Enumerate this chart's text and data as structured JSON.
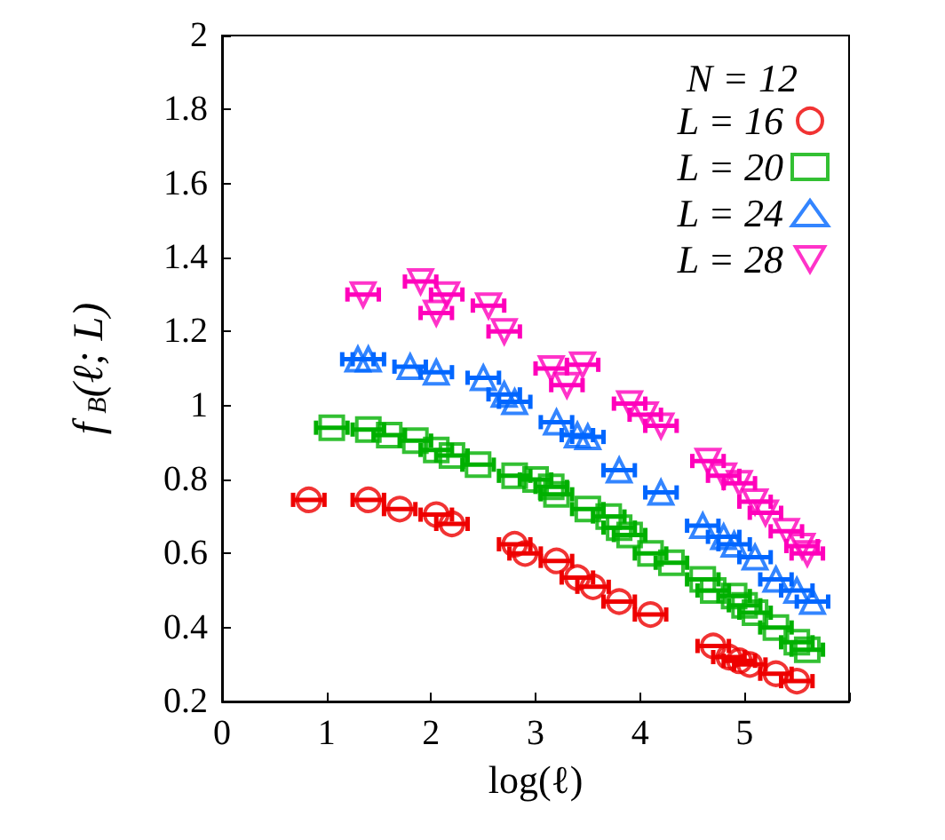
{
  "chart_data": {
    "type": "scatter",
    "xlabel": "log(ℓ)",
    "ylabel": "f$_{B}$(ℓ; L)",
    "legend_title": "N = 12",
    "legend": "top right",
    "grid": false,
    "xlim": [
      0,
      6
    ],
    "xticks": [
      0,
      1,
      2,
      3,
      4,
      5,
      {
        "value": 6,
        "label": null
      }
    ],
    "ylim": [
      0.2,
      2
    ],
    "yticks": [
      0.2,
      0.4,
      0.6,
      0.8,
      1,
      1.2,
      1.4,
      1.6,
      1.8,
      2
    ],
    "series": [
      {
        "name": "L = 16",
        "color": "#ee0000",
        "marker": "circle",
        "x": [
          0.83,
          1.4,
          1.7,
          2.05,
          2.2,
          2.8,
          2.9,
          3.2,
          3.4,
          3.55,
          3.8,
          4.1,
          4.7,
          4.85,
          4.95,
          5.05,
          5.3,
          5.5
        ],
        "values": [
          0.745,
          0.745,
          0.72,
          0.705,
          0.68,
          0.625,
          0.6,
          0.58,
          0.535,
          0.51,
          0.47,
          0.435,
          0.35,
          0.32,
          0.31,
          0.3,
          0.275,
          0.255
        ],
        "xerrors": [
          0.15,
          0.15,
          0.15,
          0.15,
          0.15,
          0.15,
          0.15,
          0.15,
          0.15,
          0.15,
          0.15,
          0.15,
          0.15,
          0.15,
          0.15,
          0.15,
          0.15,
          0.15
        ]
      },
      {
        "name": "L = 20",
        "color": "#00b000",
        "marker": "square",
        "x": [
          1.05,
          1.4,
          1.6,
          1.85,
          2.05,
          2.2,
          2.45,
          2.8,
          3.0,
          3.15,
          3.2,
          3.5,
          3.7,
          3.8,
          3.9,
          4.1,
          4.3,
          4.6,
          4.7,
          4.9,
          5.0,
          5.1,
          5.3,
          5.5,
          5.6
        ],
        "values": [
          0.94,
          0.935,
          0.92,
          0.905,
          0.88,
          0.865,
          0.84,
          0.81,
          0.8,
          0.78,
          0.76,
          0.72,
          0.7,
          0.67,
          0.65,
          0.6,
          0.575,
          0.53,
          0.5,
          0.485,
          0.46,
          0.44,
          0.4,
          0.36,
          0.34
        ],
        "xerrors": [
          0.15,
          0.15,
          0.15,
          0.15,
          0.15,
          0.15,
          0.15,
          0.15,
          0.15,
          0.15,
          0.15,
          0.15,
          0.15,
          0.15,
          0.15,
          0.15,
          0.15,
          0.15,
          0.15,
          0.15,
          0.15,
          0.15,
          0.15,
          0.15,
          0.15
        ]
      },
      {
        "name": "L = 24",
        "color": "#0066ff",
        "marker": "triangle",
        "x": [
          1.3,
          1.4,
          1.8,
          2.05,
          2.5,
          2.7,
          2.8,
          3.2,
          3.4,
          3.5,
          3.8,
          4.2,
          4.6,
          4.8,
          4.9,
          5.1,
          5.3,
          5.5,
          5.65
        ],
        "values": [
          1.125,
          1.125,
          1.105,
          1.09,
          1.075,
          1.03,
          1.01,
          0.955,
          0.92,
          0.915,
          0.825,
          0.765,
          0.675,
          0.645,
          0.625,
          0.59,
          0.53,
          0.5,
          0.47
        ],
        "xerrors": [
          0.15,
          0.15,
          0.15,
          0.15,
          0.15,
          0.15,
          0.15,
          0.15,
          0.15,
          0.15,
          0.15,
          0.15,
          0.15,
          0.15,
          0.15,
          0.15,
          0.15,
          0.15,
          0.15
        ]
      },
      {
        "name": "L = 28",
        "color": "#ff00bb",
        "marker": "triangle-down",
        "x": [
          1.35,
          1.9,
          2.05,
          2.15,
          2.55,
          2.7,
          3.15,
          3.3,
          3.45,
          3.9,
          4.05,
          4.2,
          4.65,
          4.8,
          4.95,
          5.1,
          5.2,
          5.4,
          5.55,
          5.6
        ],
        "values": [
          1.3,
          1.335,
          1.25,
          1.3,
          1.27,
          1.2,
          1.1,
          1.055,
          1.11,
          1.005,
          0.975,
          0.945,
          0.85,
          0.81,
          0.79,
          0.74,
          0.71,
          0.66,
          0.62,
          0.6
        ],
        "xerrors": [
          0.15,
          0.15,
          0.15,
          0.15,
          0.15,
          0.15,
          0.15,
          0.15,
          0.15,
          0.15,
          0.15,
          0.15,
          0.15,
          0.15,
          0.15,
          0.15,
          0.15,
          0.15,
          0.15,
          0.15
        ]
      }
    ]
  }
}
